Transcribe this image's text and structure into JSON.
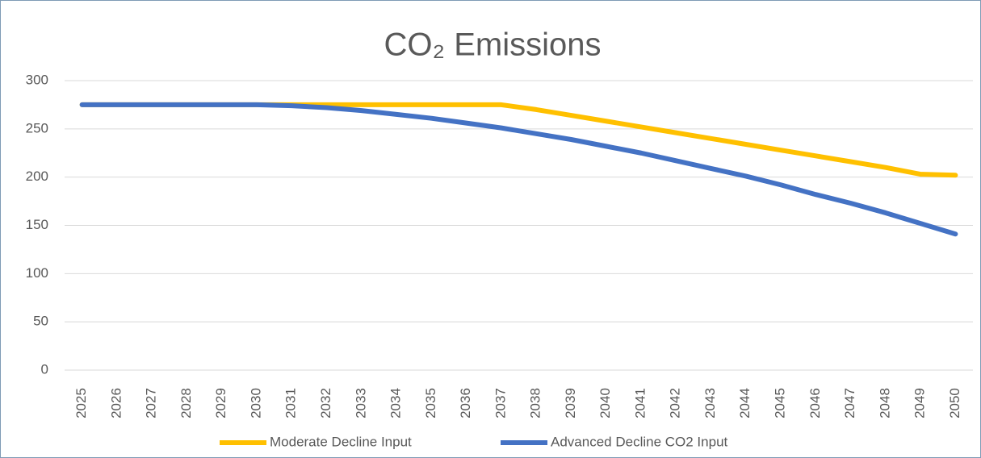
{
  "chart_data": {
    "type": "line",
    "title": "CO₂ Emissions",
    "categories": [
      "2025",
      "2026",
      "2027",
      "2028",
      "2029",
      "2030",
      "2031",
      "2032",
      "2033",
      "2034",
      "2035",
      "2036",
      "2037",
      "2038",
      "2039",
      "2040",
      "2041",
      "2042",
      "2043",
      "2044",
      "2045",
      "2046",
      "2047",
      "2048",
      "2049",
      "2050"
    ],
    "series": [
      {
        "name": "Moderate Decline Input",
        "color": "#FFC000",
        "values": [
          275,
          275,
          275,
          275,
          275,
          275,
          275,
          275,
          275,
          275,
          275,
          275,
          275,
          270,
          264,
          258,
          252,
          246,
          240,
          234,
          228,
          222,
          216,
          210,
          203,
          202
        ]
      },
      {
        "name": "Advanced Decline CO2 Input",
        "color": "#4472C4",
        "values": [
          275,
          275,
          275,
          275,
          275,
          275,
          274,
          272,
          269,
          265,
          261,
          256,
          251,
          245,
          239,
          232,
          225,
          217,
          209,
          201,
          192,
          182,
          173,
          163,
          152,
          141
        ]
      }
    ],
    "ylim": [
      0,
      300
    ],
    "yticks": [
      0,
      50,
      100,
      150,
      200,
      250,
      300
    ],
    "grid": true,
    "legend": "bottom"
  }
}
